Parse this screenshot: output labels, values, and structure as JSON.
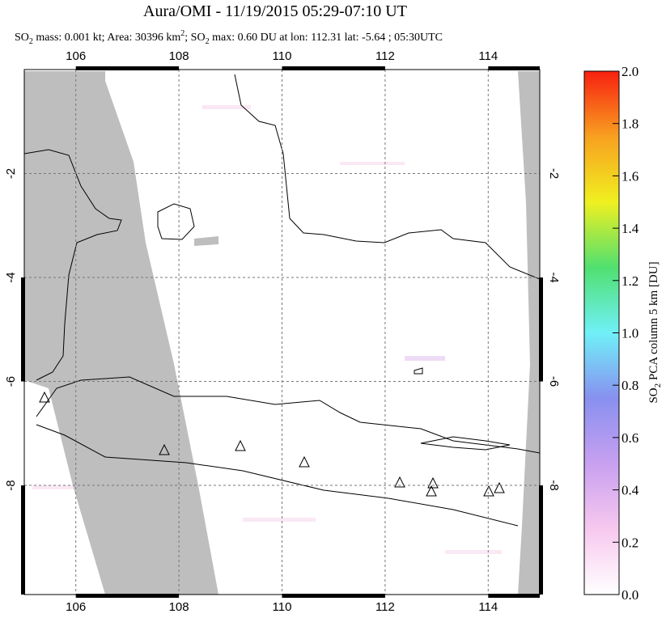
{
  "chart_data": {
    "type": "map",
    "title": "Aura/OMI - 11/19/2015 05:29-07:10 UT",
    "subtitle": [
      "SO",
      "2",
      " mass: 0.001 kt; Area: 30396 km",
      "2",
      "; SO",
      "2",
      " max: 0.60 DU at lon: 112.31 lat: -5.64 ; 05:30UTC"
    ],
    "xlim": [
      105,
      115
    ],
    "xticks": [
      106,
      108,
      110,
      112,
      114
    ],
    "ylim": [
      -10.1,
      0
    ],
    "yticks": [
      -2,
      -4,
      -6,
      -8
    ],
    "grid": true,
    "colorbar": {
      "label": [
        "SO",
        "2",
        " PCA column 5 km [DU]"
      ],
      "lim": [
        0,
        2
      ],
      "ticks": [
        {
          "value": 0,
          "label": "0.0"
        },
        0.2,
        0.4,
        0.6,
        0.8,
        {
          "value": 1,
          "label": "1.0"
        },
        1.2,
        1.4,
        1.6,
        1.8,
        {
          "value": 2,
          "label": "2.0"
        }
      ],
      "colors": [
        "#ffffff",
        "#f7c8ee",
        "#c8a0f0",
        "#8890f0",
        "#70f0f8",
        "#50e070",
        "#f0f020",
        "#f8a020",
        "#f82010"
      ]
    }
  }
}
